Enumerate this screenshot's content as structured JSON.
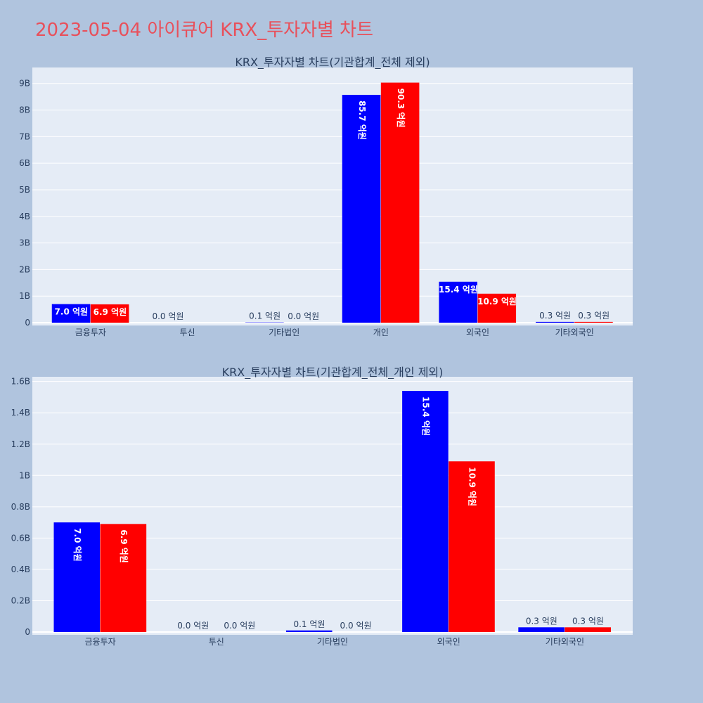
{
  "page": {
    "title": "2023-05-04 아이큐어 KRX_투자자별 차트"
  },
  "colors": {
    "buy": "#0000ff",
    "sell": "#ff0000",
    "plot_bg": "#e5ecf6",
    "page_bg": "#b0c4de",
    "title": "#e8505b"
  },
  "chart_data": [
    {
      "type": "bar",
      "title": "KRX_투자자별 차트(기관합계_전체 제외)",
      "categories": [
        "금융투자",
        "투신",
        "기타법인",
        "개인",
        "외국인",
        "기타외국인"
      ],
      "series": [
        {
          "values": [
            700000000,
            0,
            10000000,
            8570000000,
            1540000000,
            30000000
          ],
          "labels": [
            "7.0 억원",
            "0.0 억원",
            "0.1 억원",
            "85.7 억원",
            "15.4 억원",
            "0.3 억원"
          ]
        },
        {
          "values": [
            690000000,
            0,
            0,
            9030000000,
            1090000000,
            30000000
          ],
          "labels": [
            "6.9 억원",
            "",
            "0.0 억원",
            "90.3 억원",
            "10.9 억원",
            "0.3 억원"
          ]
        }
      ],
      "ylim": [
        0,
        9600000000
      ],
      "yticks": [
        0,
        1000000000,
        2000000000,
        3000000000,
        4000000000,
        5000000000,
        6000000000,
        7000000000,
        8000000000,
        9000000000
      ],
      "ytick_labels": [
        "0",
        "1B",
        "2B",
        "3B",
        "4B",
        "5B",
        "6B",
        "7B",
        "8B",
        "9B"
      ],
      "grid": true,
      "legend": "none"
    },
    {
      "type": "bar",
      "title": "KRX_투자자별 차트(기관합계_전체_개인 제외)",
      "categories": [
        "금융투자",
        "투신",
        "기타법인",
        "외국인",
        "기타외국인"
      ],
      "series": [
        {
          "values": [
            700000000,
            0,
            10000000,
            1540000000,
            30000000
          ],
          "labels": [
            "7.0 억원",
            "0.0 억원",
            "0.1 억원",
            "15.4 억원",
            "0.3 억원"
          ]
        },
        {
          "values": [
            690000000,
            0,
            0,
            1090000000,
            30000000
          ],
          "labels": [
            "6.9 억원",
            "0.0 억원",
            "0.0 억원",
            "10.9 억원",
            "0.3 억원"
          ]
        }
      ],
      "ylim": [
        0,
        1630000000
      ],
      "yticks": [
        0,
        200000000,
        400000000,
        600000000,
        800000000,
        1000000000,
        1200000000,
        1400000000,
        1600000000
      ],
      "ytick_labels": [
        "0",
        "0.2B",
        "0.4B",
        "0.6B",
        "0.8B",
        "1B",
        "1.2B",
        "1.4B",
        "1.6B"
      ],
      "grid": true,
      "legend": "none"
    }
  ]
}
